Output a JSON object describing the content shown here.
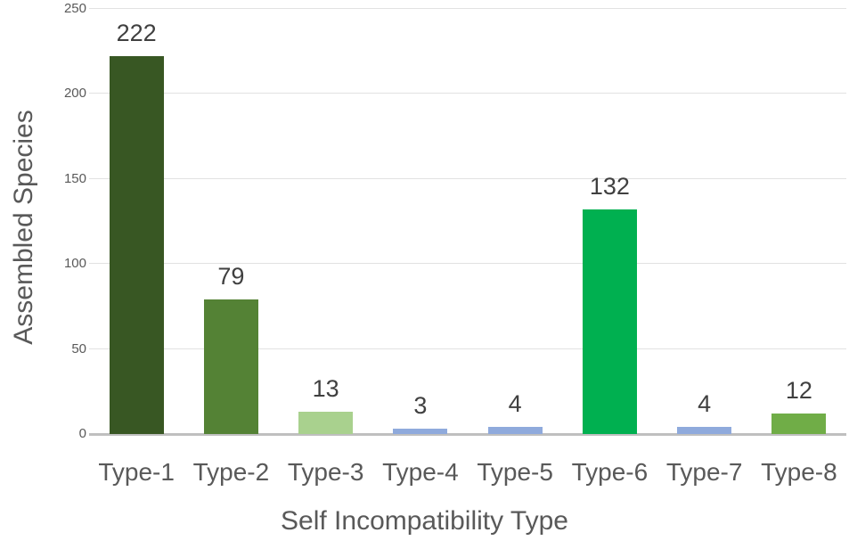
{
  "chart_data": {
    "type": "bar",
    "title": "",
    "xlabel": "Self Incompatibility Type",
    "ylabel": "Assembled Species",
    "categories": [
      "Type-1",
      "Type-2",
      "Type-3",
      "Type-4",
      "Type-5",
      "Type-6",
      "Type-7",
      "Type-8"
    ],
    "values": [
      222,
      79,
      13,
      3,
      4,
      132,
      4,
      12
    ],
    "value_labels": [
      "222",
      "79",
      "13",
      "3",
      "4",
      "132",
      "4",
      "12"
    ],
    "bar_colors": [
      "#385723",
      "#548235",
      "#A9D18E",
      "#8FAADC",
      "#8FAADC",
      "#00B050",
      "#8FAADC",
      "#70AD47"
    ],
    "y_ticks": [
      0,
      50,
      100,
      150,
      200,
      250
    ],
    "ylim": [
      0,
      250
    ],
    "grid": "horizontal",
    "legend": "none"
  },
  "colors": {
    "background": "#FFFFFF",
    "gridline": "#E2E2E2",
    "axis_line": "#BFBFBF",
    "tick_label": "#595959",
    "value_label": "#404040",
    "axis_title": "#595959"
  }
}
